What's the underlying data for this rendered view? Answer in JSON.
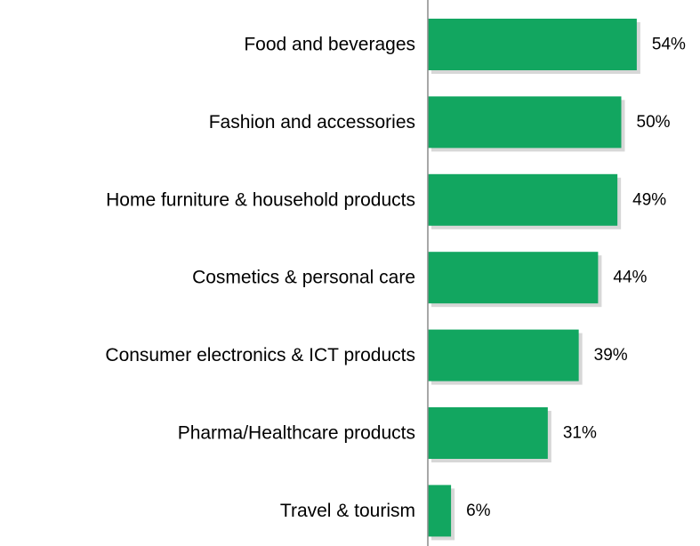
{
  "chart_data": {
    "type": "bar",
    "orientation": "horizontal",
    "categories": [
      "Food and beverages",
      "Fashion and accessories",
      "Home furniture & household products",
      "Cosmetics & personal care",
      "Consumer electronics & ICT products",
      "Pharma/Healthcare products",
      "Travel & tourism"
    ],
    "values": [
      54,
      50,
      49,
      44,
      39,
      31,
      6
    ],
    "value_labels": [
      "54%",
      "50%",
      "49%",
      "44%",
      "39%",
      "31%",
      "6%"
    ],
    "xlim": [
      0,
      100
    ],
    "grid": false,
    "bar_color": "#12a660",
    "shadow_color": "#bdbdbd",
    "axis_color": "#8c8c8c"
  }
}
